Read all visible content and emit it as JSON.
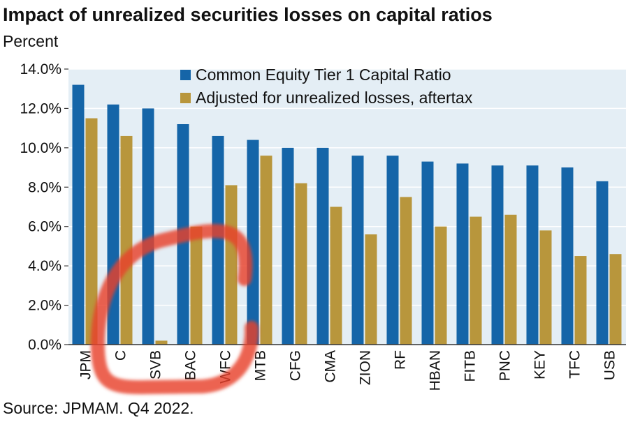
{
  "chart_data": {
    "type": "bar",
    "title": "Impact of unrealized securities losses on capital ratios",
    "subtitle": "Percent",
    "source": "Source: JPMAM. Q4 2022.",
    "categories": [
      "JPM",
      "C",
      "SVB",
      "BAC",
      "WFC",
      "MTB",
      "CFG",
      "CMA",
      "ZION",
      "RF",
      "HBAN",
      "FITB",
      "PNC",
      "KEY",
      "TFC",
      "USB"
    ],
    "series": [
      {
        "name": "Common Equity Tier 1 Capital Ratio",
        "color": "#1565a8",
        "values": [
          13.2,
          12.2,
          12.0,
          11.2,
          10.6,
          10.4,
          10.0,
          10.0,
          9.6,
          9.6,
          9.3,
          9.2,
          9.1,
          9.1,
          9.0,
          8.3
        ]
      },
      {
        "name": "Adjusted for unrealized losses, aftertax",
        "color": "#b8963c",
        "values": [
          11.5,
          10.6,
          0.2,
          6.0,
          8.1,
          9.6,
          8.2,
          7.0,
          5.6,
          7.5,
          6.0,
          6.5,
          6.6,
          5.8,
          4.5,
          4.6
        ]
      }
    ],
    "y_ticks": [
      "0.0%",
      "2.0%",
      "4.0%",
      "6.0%",
      "8.0%",
      "10.0%",
      "12.0%",
      "14.0%"
    ],
    "ylim": [
      0,
      14
    ],
    "grid": true,
    "legend": "top-center",
    "plot_background": "#e4eef5",
    "annotation": {
      "type": "hand-drawn red circle",
      "target": "SVB",
      "color": "#e8402a"
    }
  }
}
